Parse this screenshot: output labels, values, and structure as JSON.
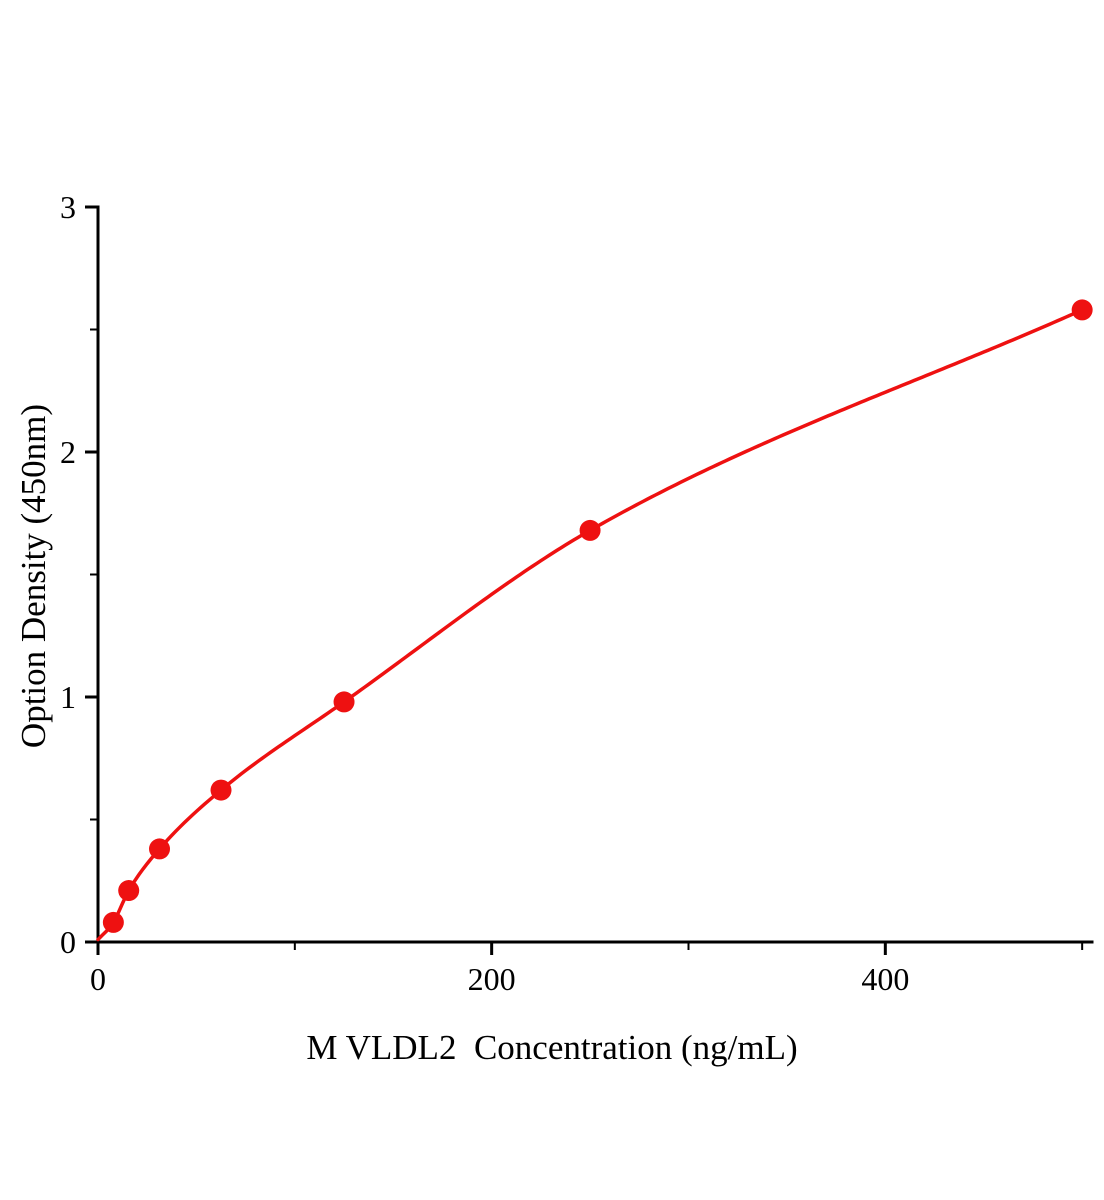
{
  "chart_data": {
    "type": "scatter",
    "title": "",
    "xlabel": "M VLDL2  Concentration (ng/mL)",
    "ylabel": "Option Density (450nm)",
    "xlim": [
      0,
      505
    ],
    "ylim": [
      0,
      3
    ],
    "x_major_ticks": [
      0,
      200,
      400
    ],
    "x_minor_step": 100,
    "y_major_ticks": [
      0,
      1,
      2,
      3
    ],
    "y_minor_step": 0.5,
    "grid": false,
    "legend": "none",
    "line_color": "#ee1111",
    "marker_color": "#ee1111",
    "axis_color": "#000000",
    "curve_start": [
      0,
      0.01
    ],
    "points": [
      {
        "x": 7.8,
        "y": 0.08
      },
      {
        "x": 15.6,
        "y": 0.21
      },
      {
        "x": 31.25,
        "y": 0.38
      },
      {
        "x": 62.5,
        "y": 0.62
      },
      {
        "x": 125,
        "y": 0.98
      },
      {
        "x": 250,
        "y": 1.68
      },
      {
        "x": 500,
        "y": 2.58
      }
    ]
  }
}
